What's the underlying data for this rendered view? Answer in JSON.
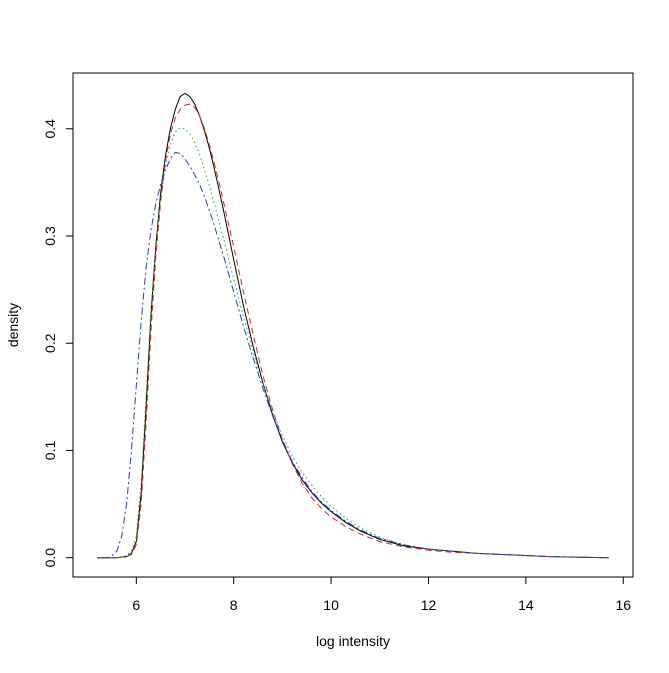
{
  "chart_data": {
    "type": "line",
    "title": "",
    "xlabel": "log intensity",
    "ylabel": "density",
    "xlim": [
      4.7,
      16.2
    ],
    "ylim": [
      -0.018,
      0.452
    ],
    "x_ticks": [
      6,
      8,
      10,
      12,
      14,
      16
    ],
    "y_ticks": [
      0.0,
      0.1,
      0.2,
      0.3,
      0.4
    ],
    "x_tick_labels": [
      "6",
      "8",
      "10",
      "12",
      "14",
      "16"
    ],
    "y_tick_labels": [
      "0.0",
      "0.1",
      "0.2",
      "0.3",
      "0.4"
    ],
    "grid": false,
    "legend": "none",
    "series": [
      {
        "color": "#000000",
        "dash": "solid",
        "x": [
          5.2,
          5.6,
          5.8,
          5.9,
          6.0,
          6.1,
          6.2,
          6.3,
          6.4,
          6.5,
          6.6,
          6.7,
          6.8,
          6.9,
          7.0,
          7.1,
          7.2,
          7.3,
          7.4,
          7.5,
          7.6,
          7.7,
          7.8,
          7.9,
          8.0,
          8.2,
          8.4,
          8.6,
          8.8,
          9.0,
          9.2,
          9.4,
          9.6,
          9.8,
          10.0,
          10.3,
          10.6,
          11.0,
          11.5,
          12.0,
          12.5,
          13.0,
          13.5,
          14.0,
          14.5,
          15.0,
          15.7
        ],
        "y": [
          0.0,
          0.0,
          0.001,
          0.004,
          0.015,
          0.06,
          0.14,
          0.225,
          0.29,
          0.34,
          0.375,
          0.4,
          0.418,
          0.43,
          0.433,
          0.43,
          0.423,
          0.412,
          0.398,
          0.382,
          0.363,
          0.343,
          0.322,
          0.3,
          0.278,
          0.235,
          0.197,
          0.163,
          0.133,
          0.108,
          0.089,
          0.073,
          0.061,
          0.051,
          0.043,
          0.033,
          0.025,
          0.017,
          0.011,
          0.008,
          0.006,
          0.004,
          0.003,
          0.002,
          0.001,
          0.0005,
          0.0
        ]
      },
      {
        "color": "#d62728",
        "dash": "dashed",
        "x": [
          5.2,
          5.6,
          5.8,
          5.9,
          6.0,
          6.1,
          6.2,
          6.3,
          6.4,
          6.5,
          6.6,
          6.7,
          6.8,
          6.9,
          7.0,
          7.1,
          7.2,
          7.3,
          7.4,
          7.5,
          7.6,
          7.7,
          7.8,
          7.9,
          8.0,
          8.2,
          8.4,
          8.6,
          8.8,
          9.0,
          9.2,
          9.4,
          9.6,
          9.8,
          10.0,
          10.3,
          10.6,
          11.0,
          11.5,
          12.0,
          12.5,
          13.0,
          13.5,
          14.0,
          14.5,
          15.0,
          15.7
        ],
        "y": [
          0.0,
          0.0,
          0.001,
          0.003,
          0.012,
          0.05,
          0.125,
          0.21,
          0.28,
          0.332,
          0.37,
          0.395,
          0.41,
          0.418,
          0.422,
          0.423,
          0.42,
          0.412,
          0.4,
          0.385,
          0.368,
          0.35,
          0.33,
          0.31,
          0.29,
          0.248,
          0.208,
          0.17,
          0.138,
          0.11,
          0.088,
          0.07,
          0.056,
          0.046,
          0.038,
          0.029,
          0.022,
          0.015,
          0.01,
          0.007,
          0.005,
          0.004,
          0.003,
          0.002,
          0.001,
          0.0005,
          0.0
        ]
      },
      {
        "color": "#2ca02c",
        "dash": "dotted",
        "x": [
          5.2,
          5.6,
          5.8,
          5.9,
          6.0,
          6.1,
          6.2,
          6.3,
          6.4,
          6.5,
          6.6,
          6.7,
          6.8,
          6.9,
          7.0,
          7.1,
          7.2,
          7.3,
          7.4,
          7.5,
          7.6,
          7.7,
          7.8,
          7.9,
          8.0,
          8.2,
          8.4,
          8.6,
          8.8,
          9.0,
          9.2,
          9.4,
          9.6,
          9.8,
          10.0,
          10.3,
          10.6,
          11.0,
          11.5,
          12.0,
          12.5,
          13.0,
          13.5,
          14.0,
          14.5,
          15.0,
          15.7
        ],
        "y": [
          0.0,
          0.0,
          0.002,
          0.006,
          0.02,
          0.07,
          0.15,
          0.23,
          0.29,
          0.335,
          0.365,
          0.385,
          0.397,
          0.401,
          0.4,
          0.395,
          0.387,
          0.376,
          0.362,
          0.347,
          0.33,
          0.313,
          0.296,
          0.278,
          0.26,
          0.225,
          0.192,
          0.162,
          0.136,
          0.114,
          0.095,
          0.08,
          0.068,
          0.057,
          0.048,
          0.037,
          0.028,
          0.019,
          0.012,
          0.008,
          0.006,
          0.004,
          0.003,
          0.002,
          0.001,
          0.0005,
          0.0
        ]
      },
      {
        "color": "#1f3fd0",
        "dash": "dashdot",
        "x": [
          5.2,
          5.4,
          5.5,
          5.6,
          5.7,
          5.8,
          5.9,
          6.0,
          6.1,
          6.2,
          6.3,
          6.4,
          6.5,
          6.6,
          6.7,
          6.8,
          6.9,
          7.0,
          7.1,
          7.2,
          7.3,
          7.4,
          7.5,
          7.6,
          7.7,
          7.8,
          7.9,
          8.0,
          8.2,
          8.4,
          8.6,
          8.8,
          9.0,
          9.2,
          9.4,
          9.6,
          9.8,
          10.0,
          10.3,
          10.6,
          11.0,
          11.5,
          12.0,
          12.5,
          13.0,
          13.5,
          14.0,
          14.5,
          15.0,
          15.7
        ],
        "y": [
          0.0,
          0.0,
          0.002,
          0.006,
          0.02,
          0.05,
          0.1,
          0.16,
          0.22,
          0.27,
          0.305,
          0.33,
          0.348,
          0.362,
          0.372,
          0.378,
          0.377,
          0.372,
          0.365,
          0.357,
          0.348,
          0.337,
          0.324,
          0.31,
          0.295,
          0.28,
          0.264,
          0.248,
          0.216,
          0.186,
          0.158,
          0.132,
          0.11,
          0.09,
          0.075,
          0.062,
          0.052,
          0.044,
          0.034,
          0.026,
          0.018,
          0.012,
          0.008,
          0.006,
          0.004,
          0.003,
          0.002,
          0.001,
          0.0005,
          0.0
        ]
      }
    ]
  }
}
